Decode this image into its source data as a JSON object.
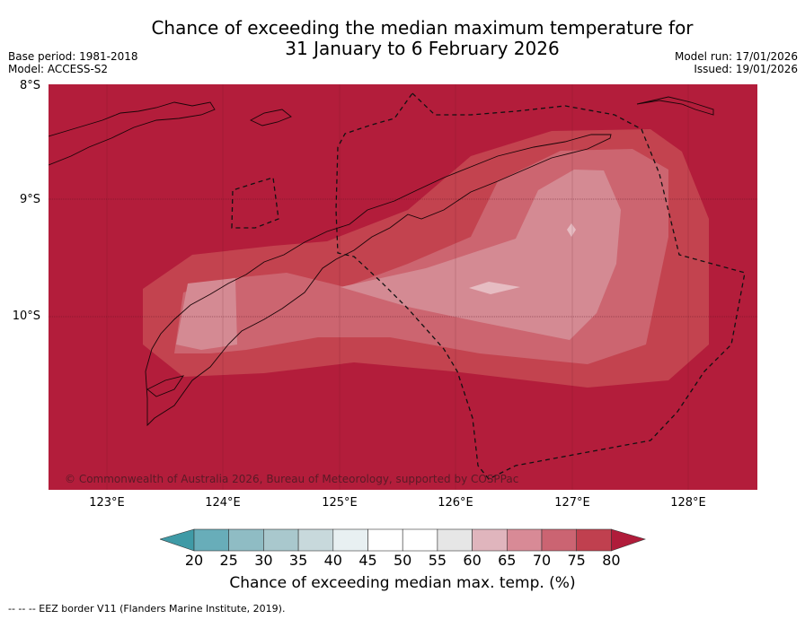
{
  "title": {
    "line1": "Chance of exceeding the median maximum temperature for",
    "line2": "31 January to 6 February 2026"
  },
  "meta": {
    "base_period": "Base period: 1981-2018",
    "model": "Model: ACCESS-S2",
    "model_run": "Model run: 17/01/2026",
    "issued": "Issued: 19/01/2026"
  },
  "axes": {
    "lat_labels": [
      "8°S",
      "9°S",
      "10°S"
    ],
    "lon_labels": [
      "123°E",
      "124°E",
      "125°E",
      "126°E",
      "127°E",
      "128°E"
    ]
  },
  "copyright": "© Commonwealth of Australia 2026, Bureau of Meteorology, supported by COSPPac",
  "colorbar": {
    "ticks": [
      "20",
      "25",
      "30",
      "35",
      "40",
      "45",
      "50",
      "55",
      "60",
      "65",
      "70",
      "75",
      "80"
    ],
    "colors": [
      "#3f9aa6",
      "#68adb9",
      "#8fbcc4",
      "#a9c8cd",
      "#c8d9dc",
      "#e8f0f2",
      "#ffffff",
      "#ffffff",
      "#e6e6e6",
      "#e0b5bd",
      "#d88a96",
      "#cb6472",
      "#c0404f",
      "#b01c3a"
    ],
    "label": "Chance of exceeding median max. temp. (%)"
  },
  "footer": "--  --  -- EEZ border V11 (Flanders Marine Institute, 2019).",
  "map_colors": {
    "band80": "#b31d3b",
    "band75": "#c3434f",
    "band70": "#cc6570",
    "band65": "#d48a93",
    "band60": "#e6bcc2"
  }
}
